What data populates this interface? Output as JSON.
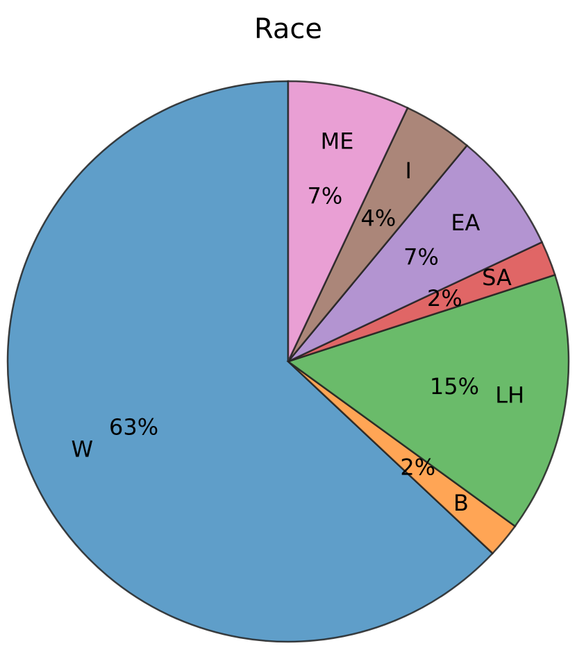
{
  "chart_data": {
    "type": "pie",
    "title": "Race",
    "categories": [
      "W",
      "B",
      "LH",
      "SA",
      "EA",
      "I",
      "ME"
    ],
    "values": [
      63,
      2,
      15,
      2,
      7,
      4,
      7
    ],
    "value_labels": [
      "63%",
      "2%",
      "15%",
      "2%",
      "7%",
      "4%",
      "7%"
    ],
    "colors": [
      "#5f9ec9",
      "#ffa555",
      "#6abb6a",
      "#e06666",
      "#b394d1",
      "#ab8679",
      "#e99fd4"
    ]
  }
}
